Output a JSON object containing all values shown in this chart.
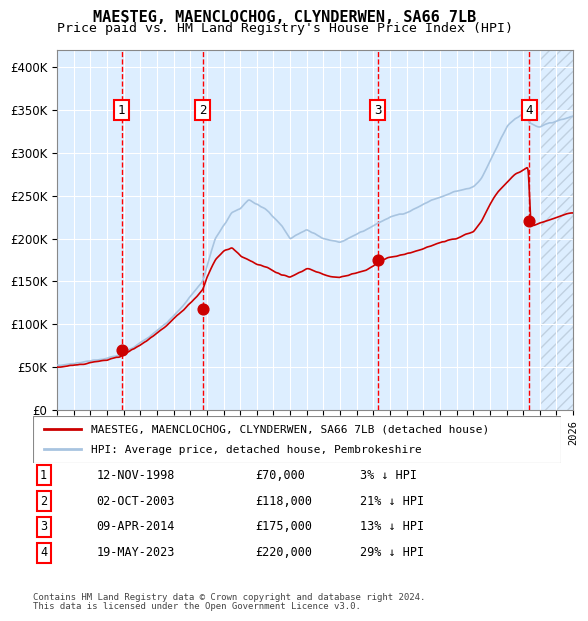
{
  "title1": "MAESTEG, MAENCLOCHOG, CLYNDERWEN, SA66 7LB",
  "title2": "Price paid vs. HM Land Registry's House Price Index (HPI)",
  "legend_line1": "MAESTEG, MAENCLOCHOG, CLYNDERWEN, SA66 7LB (detached house)",
  "legend_line2": "HPI: Average price, detached house, Pembrokeshire",
  "transactions": [
    {
      "num": 1,
      "date": "12-NOV-1998",
      "price": 70000,
      "pct": "3%",
      "dir": "↓"
    },
    {
      "num": 2,
      "date": "02-OCT-2003",
      "price": 118000,
      "pct": "21%",
      "dir": "↓"
    },
    {
      "num": 3,
      "date": "09-APR-2014",
      "price": 175000,
      "pct": "13%",
      "dir": "↓"
    },
    {
      "num": 4,
      "date": "19-MAY-2023",
      "price": 220000,
      "pct": "29%",
      "dir": "↓"
    }
  ],
  "footer1": "Contains HM Land Registry data © Crown copyright and database right 2024.",
  "footer2": "This data is licensed under the Open Government Licence v3.0.",
  "hpi_color": "#a8c4e0",
  "price_color": "#cc0000",
  "dot_color": "#cc0000",
  "vline_color": "#ff0000",
  "bg_color_main": "#ddeeff",
  "bg_color_hatch": "#ddeeff",
  "ylim_max": 420000,
  "x_start_year": 1995,
  "x_end_year": 2026
}
